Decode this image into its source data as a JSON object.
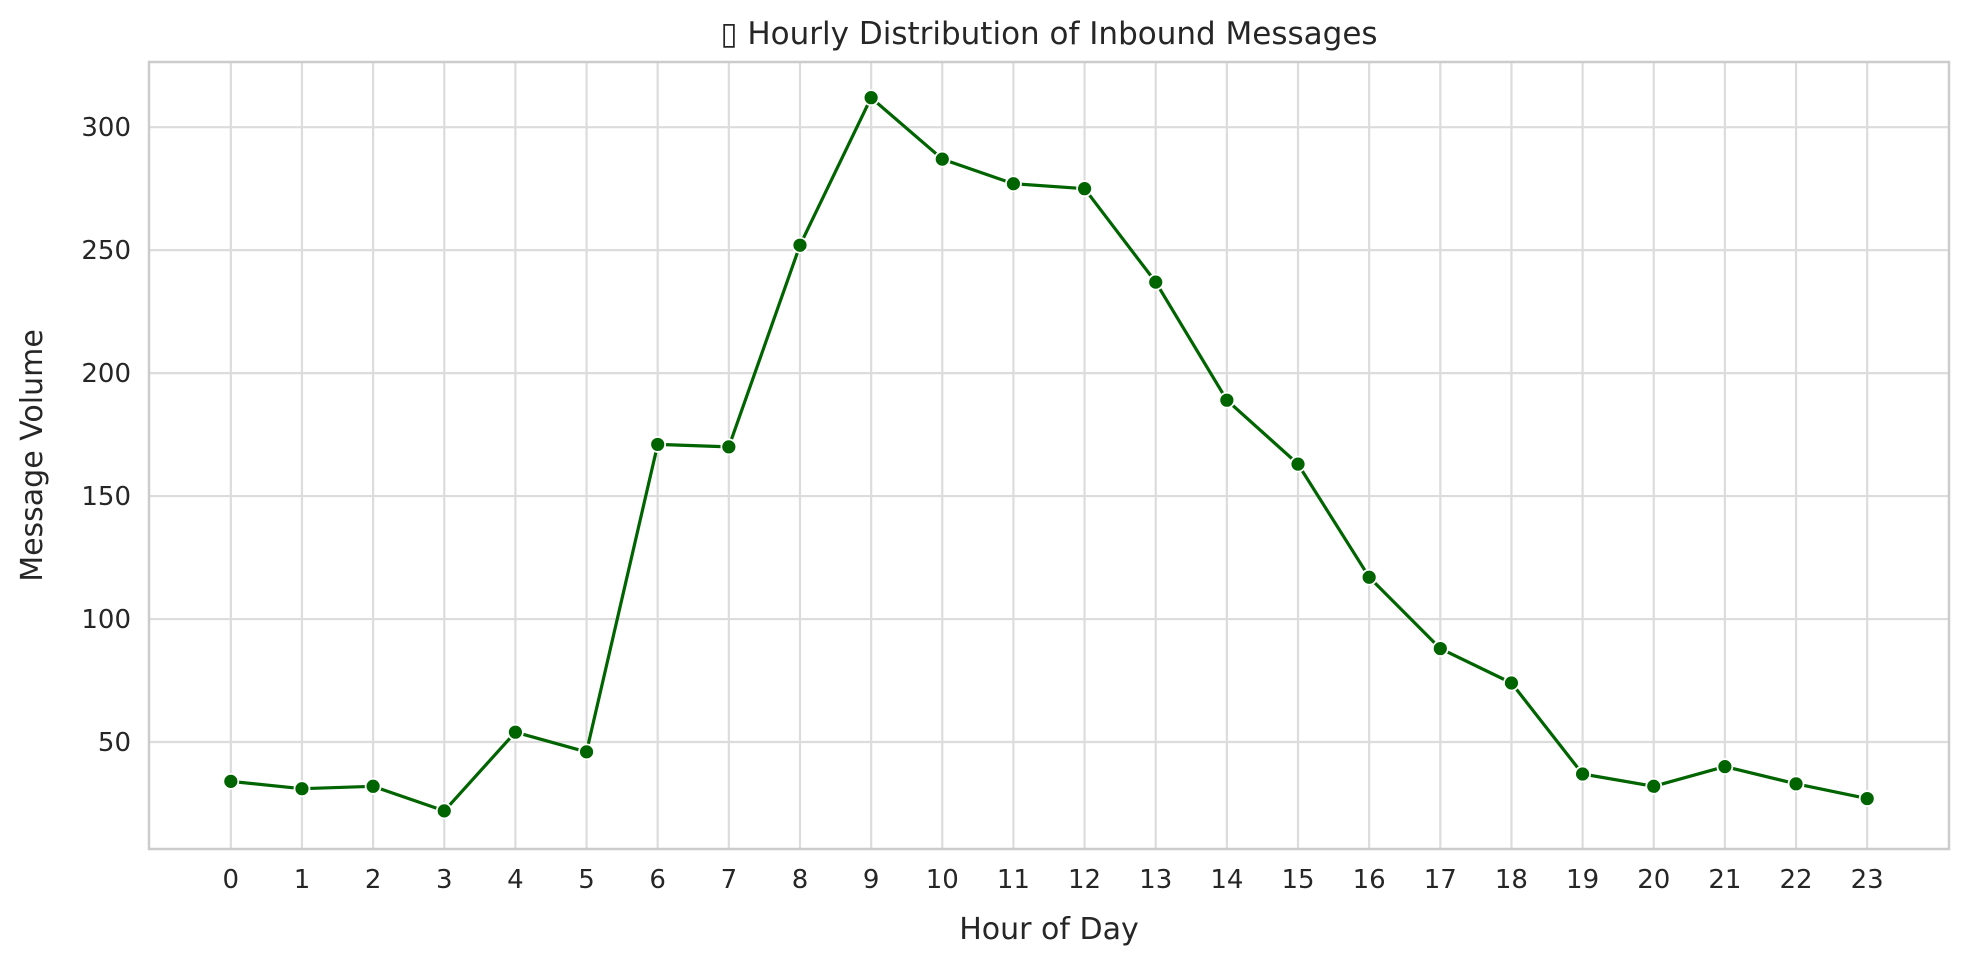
{
  "chart_data": {
    "type": "line",
    "title": "▯ Hourly Distribution of Inbound Messages",
    "xlabel": "Hour of Day",
    "ylabel": "Message Volume",
    "x": [
      0,
      1,
      2,
      3,
      4,
      5,
      6,
      7,
      8,
      9,
      10,
      11,
      12,
      13,
      14,
      15,
      16,
      17,
      18,
      19,
      20,
      21,
      22,
      23
    ],
    "x_tick_labels": [
      "0",
      "1",
      "2",
      "3",
      "4",
      "5",
      "6",
      "7",
      "8",
      "9",
      "10",
      "11",
      "12",
      "13",
      "14",
      "15",
      "16",
      "17",
      "18",
      "19",
      "20",
      "21",
      "22",
      "23"
    ],
    "series": [
      {
        "values": [
          34,
          31,
          32,
          22,
          54,
          46,
          171,
          170,
          252,
          312,
          287,
          277,
          275,
          237,
          189,
          163,
          117,
          88,
          74,
          37,
          32,
          40,
          33,
          27
        ],
        "color": "#006400",
        "marker": "circle"
      }
    ],
    "y_ticks": [
      50,
      100,
      150,
      200,
      250,
      300
    ],
    "y_tick_labels": [
      "50",
      "100",
      "150",
      "200",
      "250",
      "300"
    ],
    "xlim": [
      -1.15,
      24.15
    ],
    "ylim": [
      6.5,
      326.5
    ],
    "grid": true,
    "legend": "none"
  }
}
